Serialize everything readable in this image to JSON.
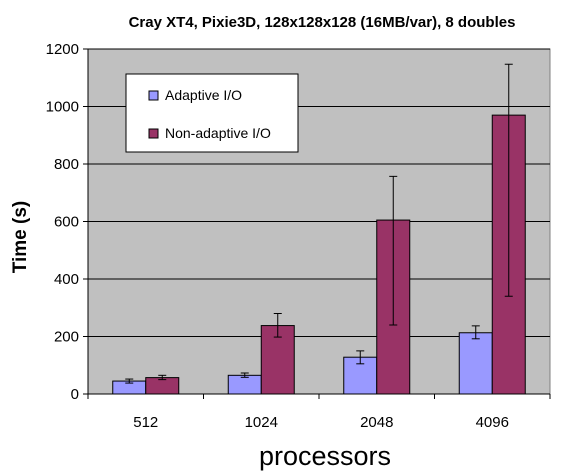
{
  "chart_data": {
    "type": "bar",
    "title": "Cray XT4, Pixie3D, 128x128x128 (16MB/var), 8 doubles",
    "xlabel": "processors",
    "ylabel": "Time (s)",
    "categories": [
      "512",
      "1024",
      "2048",
      "4096"
    ],
    "ylim": [
      0,
      1200
    ],
    "yticks": [
      0,
      200,
      400,
      600,
      800,
      1000,
      1200
    ],
    "grid": true,
    "legend_position": "top-left",
    "series": [
      {
        "name": "Adaptive I/O",
        "color": "#9999ff",
        "values": [
          45,
          65,
          128,
          213
        ],
        "error_low": [
          38,
          58,
          105,
          192
        ],
        "error_high": [
          52,
          73,
          150,
          237
        ]
      },
      {
        "name": "Non-adaptive I/O",
        "color": "#993366",
        "values": [
          57,
          238,
          605,
          970
        ],
        "error_low": [
          50,
          198,
          240,
          340
        ],
        "error_high": [
          65,
          280,
          757,
          1147
        ]
      }
    ],
    "plot_background": "#c0c0c0"
  }
}
